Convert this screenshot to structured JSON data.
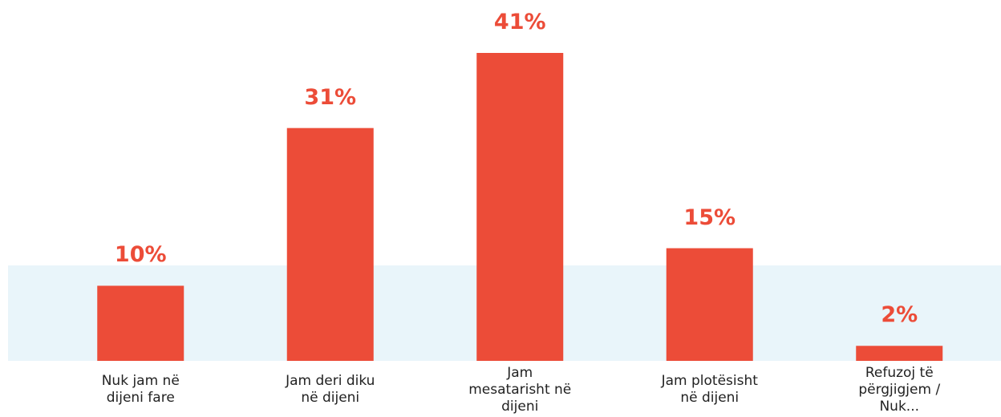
{
  "chart_data": {
    "type": "bar",
    "categories": [
      "Nuk jam në dijeni fare",
      "Jam deri diku në dijeni",
      "Jam mesatarisht në dijeni",
      "Jam plotësisht në dijeni",
      "Refuzoj të përgjigjem / Nuk..."
    ],
    "values": [
      10,
      31,
      41,
      15,
      2
    ],
    "value_labels": [
      "10%",
      "31%",
      "41%",
      "15%",
      "2%"
    ],
    "color": "#ec4c38"
  }
}
